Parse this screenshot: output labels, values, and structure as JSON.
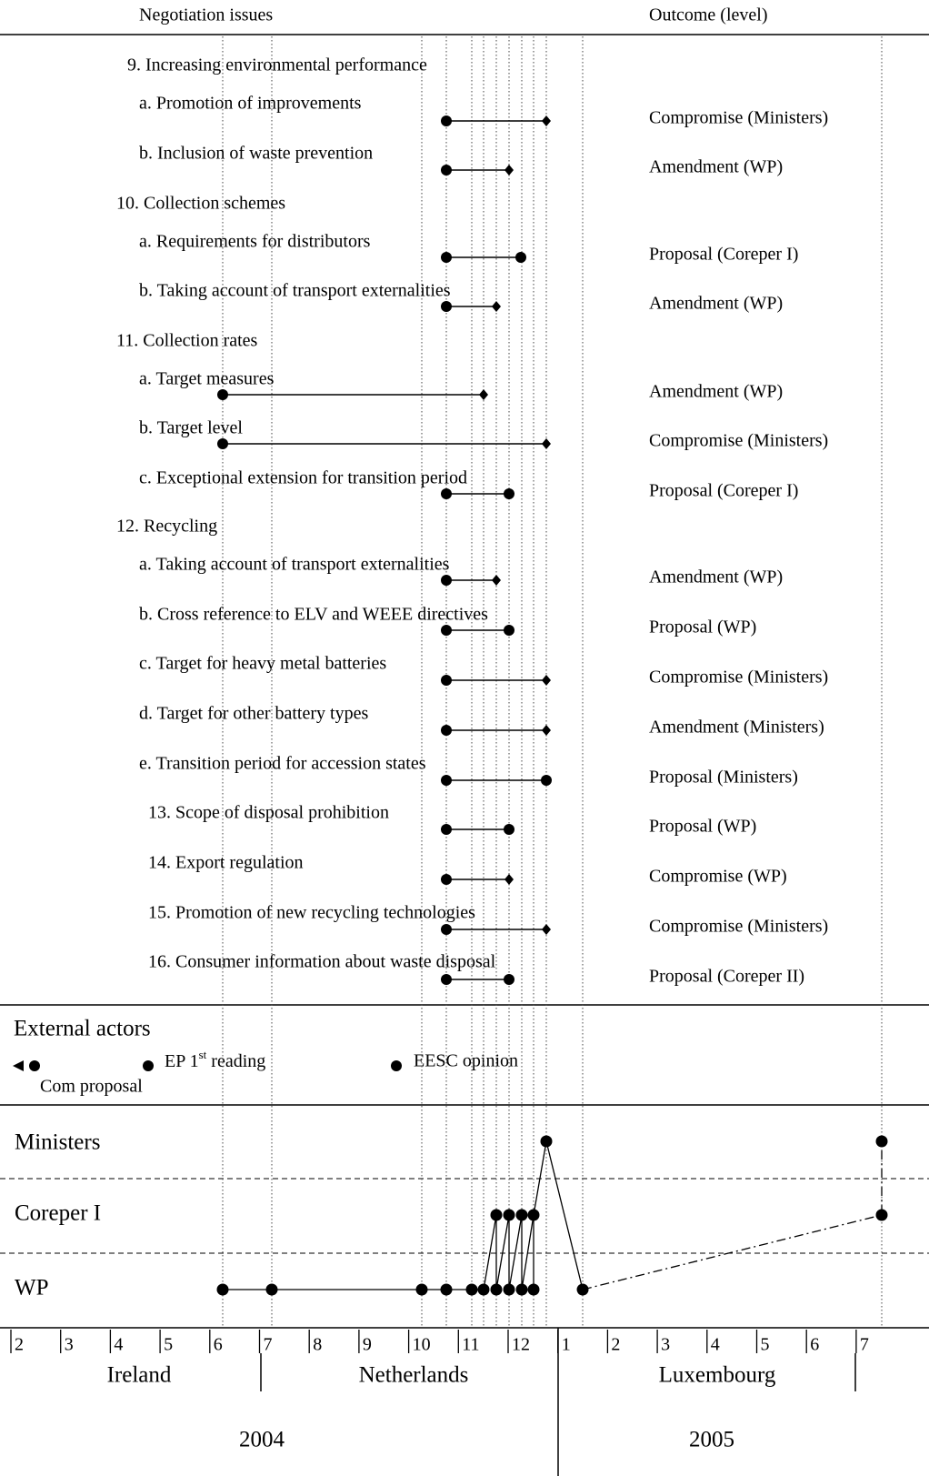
{
  "header": {
    "issues_heading": "Negotiation issues",
    "outcome_heading": "Outcome (level)"
  },
  "issues": [
    {
      "label": "9. Increasing environmental performance"
    },
    {
      "label": "a. Promotion of improvements",
      "outcome": "Compromise (Ministers)"
    },
    {
      "label": "b. Inclusion of waste prevention",
      "outcome": "Amendment (WP)"
    },
    {
      "label": "10. Collection schemes"
    },
    {
      "label": "a. Requirements for distributors",
      "outcome": "Proposal (Coreper I)"
    },
    {
      "label": "b. Taking account of transport externalities",
      "outcome": "Amendment (WP)"
    },
    {
      "label": "11. Collection rates"
    },
    {
      "label": "a. Target measures",
      "outcome": "Amendment (WP)"
    },
    {
      "label": "b. Target level",
      "outcome": "Compromise (Ministers)"
    },
    {
      "label": "c. Exceptional extension for transition period",
      "outcome": "Proposal (Coreper I)"
    },
    {
      "label": "12. Recycling"
    },
    {
      "label": "a. Taking account of transport externalities",
      "outcome": "Amendment (WP)"
    },
    {
      "label": "b. Cross reference to ELV and WEEE directives",
      "outcome": "Proposal (WP)"
    },
    {
      "label": "c. Target for heavy metal batteries",
      "outcome": "Compromise (Ministers)"
    },
    {
      "label": "d. Target for other battery types",
      "outcome": "Amendment (Ministers)"
    },
    {
      "label": "e. Transition period for accession states",
      "outcome": "Proposal (Ministers)"
    },
    {
      "label": "13. Scope of disposal prohibition",
      "outcome": "Proposal (WP)"
    },
    {
      "label": "14. Export regulation",
      "outcome": "Compromise (WP)"
    },
    {
      "label": "15. Promotion of new recycling technologies",
      "outcome": "Compromise (Ministers)"
    },
    {
      "label": "16. Consumer information about waste disposal",
      "outcome": "Proposal (Coreper II)"
    }
  ],
  "external_actors": {
    "title": "External actors",
    "com_proposal": "Com proposal",
    "ep_reading": "EP 1",
    "ep_sup": "st",
    "ep_rest": " reading",
    "eesc_opinion": "EESC opinion"
  },
  "levels": [
    "Ministers",
    "Coreper I",
    "WP"
  ],
  "months": [
    "2",
    "3",
    "4",
    "5",
    "6",
    "7",
    "8",
    "9",
    "10",
    "11",
    "12",
    "1",
    "2",
    "3",
    "4",
    "5",
    "6",
    "7"
  ],
  "presidencies": [
    "Ireland",
    "Netherlands",
    "Luxembourg"
  ],
  "years": [
    "2004",
    "2005"
  ]
}
